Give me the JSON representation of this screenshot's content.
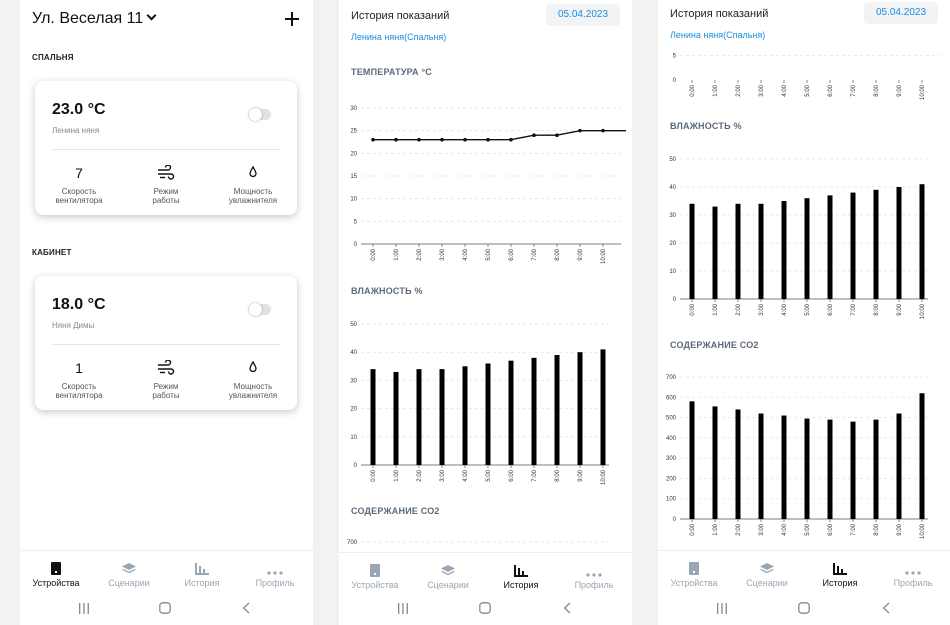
{
  "devices": {
    "address": "Ул. Веселая 11",
    "rooms": [
      {
        "title": "СПАЛЬНЯ",
        "temperature": "23.0 °C",
        "name": "Ленина няня",
        "fan_speed": "7",
        "labels": {
          "fan": [
            "Скорость",
            "вентилятора"
          ],
          "mode": [
            "Режим",
            "работы"
          ],
          "power": [
            "Мощность",
            "увлажнителя"
          ]
        }
      },
      {
        "title": "КАБИНЕТ",
        "temperature": "18.0 °C",
        "name": "Няня Димы",
        "fan_speed": "1",
        "labels": {
          "fan": [
            "Скорость",
            "вентилятора"
          ],
          "mode": [
            "Режим",
            "работы"
          ],
          "power": [
            "Мощность",
            "увлажнителя"
          ]
        }
      }
    ]
  },
  "nav": {
    "items": [
      "Устройства",
      "Сценарии",
      "История",
      "Профиль"
    ]
  },
  "history": {
    "title": "История показаний",
    "date": "05.04.2023",
    "device": "Ленина няня(Спальня)",
    "sections": {
      "temperature": "ТЕМПЕРАТУРА °С",
      "humidity": "ВЛАЖНОСТЬ %",
      "co2": "СОДЕРЖАНИЕ СО2"
    }
  },
  "chart_data": [
    {
      "type": "line",
      "title": "ТЕМПЕРАТУРА °С",
      "x": [
        "0:00",
        "1:00",
        "2:00",
        "3:00",
        "4:00",
        "5:00",
        "6:00",
        "7:00",
        "8:00",
        "9:00",
        "10:00",
        "11:00"
      ],
      "values": [
        23,
        23,
        23,
        23,
        23,
        23,
        23,
        24,
        24,
        25,
        25,
        25
      ],
      "ylim": [
        0,
        30
      ],
      "yticks": [
        0,
        5,
        10,
        15,
        20,
        25,
        30
      ],
      "grid": true
    },
    {
      "type": "bar",
      "title": "ВЛАЖНОСТЬ %",
      "categories": [
        "0:00",
        "1:00",
        "2:00",
        "3:00",
        "4:00",
        "5:00",
        "6:00",
        "7:00",
        "8:00",
        "9:00",
        "10:00"
      ],
      "values": [
        34,
        33,
        34,
        34,
        35,
        36,
        37,
        38,
        39,
        40,
        41
      ],
      "ylim": [
        0,
        50
      ],
      "yticks": [
        0,
        10,
        20,
        30,
        40,
        50
      ],
      "grid": true
    },
    {
      "type": "bar",
      "title": "СОДЕРЖАНИЕ СО2",
      "categories": [
        "0:00",
        "1:00",
        "2:00",
        "3:00",
        "4:00",
        "5:00",
        "6:00",
        "7:00",
        "8:00",
        "9:00",
        "10:00"
      ],
      "values": [
        580,
        555,
        540,
        520,
        510,
        495,
        490,
        480,
        490,
        520,
        620
      ],
      "ylim": [
        0,
        700
      ],
      "yticks": [
        0,
        100,
        200,
        300,
        400,
        500,
        600,
        700
      ],
      "grid": true
    }
  ]
}
